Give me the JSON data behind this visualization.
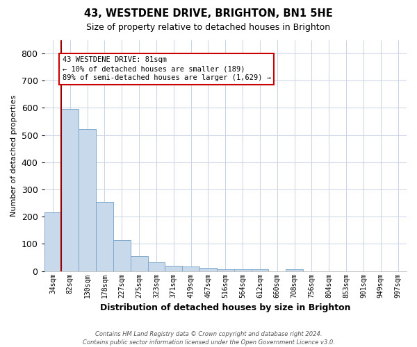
{
  "title_line1": "43, WESTDENE DRIVE, BRIGHTON, BN1 5HE",
  "title_line2": "Size of property relative to detached houses in Brighton",
  "xlabel": "Distribution of detached houses by size in Brighton",
  "ylabel": "Number of detached properties",
  "bar_labels": [
    "34sqm",
    "82sqm",
    "130sqm",
    "178sqm",
    "227sqm",
    "275sqm",
    "323sqm",
    "371sqm",
    "419sqm",
    "467sqm",
    "516sqm",
    "564sqm",
    "612sqm",
    "660sqm",
    "708sqm",
    "756sqm",
    "804sqm",
    "853sqm",
    "901sqm",
    "949sqm",
    "997sqm"
  ],
  "bar_values": [
    215,
    597,
    521,
    255,
    115,
    54,
    33,
    20,
    18,
    12,
    8,
    8,
    8,
    0,
    8,
    0,
    0,
    0,
    0,
    0,
    0
  ],
  "bar_color": "#c9d9ec",
  "bar_edge_color": "#7fa8cc",
  "vline_color": "#990000",
  "annotation_line1": "43 WESTDENE DRIVE: 81sqm",
  "annotation_line2": "← 10% of detached houses are smaller (189)",
  "annotation_line3": "89% of semi-detached houses are larger (1,629) →",
  "annotation_box_color": "#ffffff",
  "annotation_box_edge": "#cc0000",
  "ylim": [
    0,
    850
  ],
  "yticks": [
    0,
    100,
    200,
    300,
    400,
    500,
    600,
    700,
    800
  ],
  "footnote_line1": "Contains HM Land Registry data © Crown copyright and database right 2024.",
  "footnote_line2": "Contains public sector information licensed under the Open Government Licence v3.0.",
  "background_color": "#ffffff",
  "grid_color": "#c8d4e4"
}
